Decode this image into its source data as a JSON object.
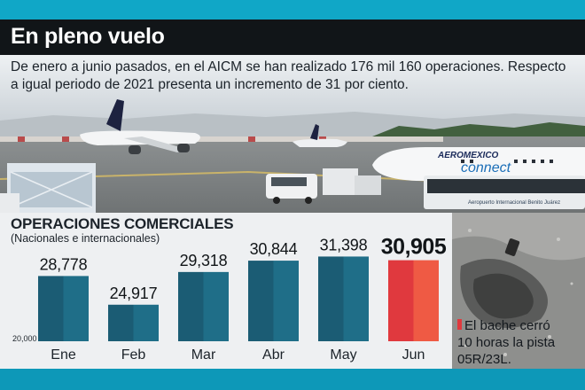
{
  "header": {
    "title": "En pleno vuelo",
    "intro": "De enero a junio pasados, en el AICM se han realizado 176 mil 160 operaciones. Respecto a igual periodo de 2021 presenta un incremento de 31 por ciento."
  },
  "photo": {
    "bus_sign": "Aeropuerto Internacional Benito Juárez",
    "plane_livery": "AEROMEXICO",
    "plane_connect": "connect"
  },
  "chart_data": {
    "type": "bar",
    "title": "OPERACIONES COMERCIALES",
    "subtitle": "(Nacionales e internacionales)",
    "categories": [
      "Ene",
      "Feb",
      "Mar",
      "Abr",
      "May",
      "Jun"
    ],
    "values": [
      28778,
      24917,
      29318,
      30844,
      31398,
      30905
    ],
    "value_labels": [
      "28,778",
      "24,917",
      "29,318",
      "30,844",
      "31,398",
      "30,905"
    ],
    "baseline_label": "20,000",
    "ylim": [
      20000,
      33000
    ],
    "highlight_index": 5,
    "colors": {
      "bar": "#1b5c74",
      "bar_light": "#1f6e88",
      "highlight": "#e0393e",
      "highlight_light": "#ef5a44"
    }
  },
  "inset": {
    "caption_lines": [
      "El bache cerró",
      "10 horas la pista",
      "05R/23L."
    ],
    "marker_color": "#e0393e"
  }
}
